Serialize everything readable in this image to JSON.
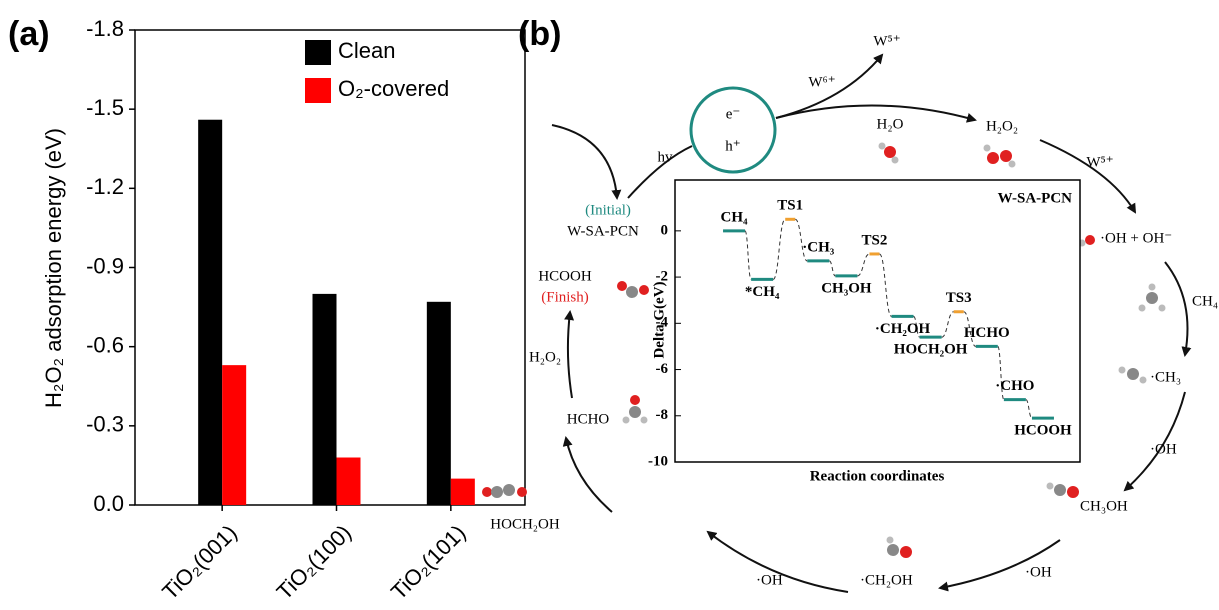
{
  "chart_data": [
    {
      "type": "bar",
      "panel": "(a)",
      "ylabel": "H₂O₂ adsorption energy (eV)",
      "categories": [
        "TiO₂(001)",
        "TiO₂(100)",
        "TiO₂(101)"
      ],
      "series": [
        {
          "name": "Clean",
          "color": "#000000",
          "values": [
            -1.46,
            -0.8,
            -0.77
          ]
        },
        {
          "name": "O₂-covered",
          "color": "#ff0000",
          "values": [
            -0.53,
            -0.18,
            -0.1
          ]
        }
      ],
      "ylim": [
        0,
        -1.8
      ],
      "yticks": [
        {
          "value": 0,
          "label": "0.0"
        },
        -0.3,
        -0.6,
        -0.9,
        -1.2,
        -1.5,
        -1.8
      ],
      "legend": "upper right"
    },
    {
      "type": "energy-profile",
      "title": "W-SA-PCN",
      "xlabel": "Reaction coordinates",
      "ylabel": "Delta G(eV)",
      "categories": [
        "CH₄",
        "*CH₄",
        "TS1",
        "·CH₃",
        "CH₃OH",
        "TS2",
        "·CH₂OH",
        "HOCH₂OH",
        "TS3",
        "HCHO",
        "·CHO",
        "HCOOH"
      ],
      "values": [
        0,
        -2.1,
        0.5,
        -1.3,
        -1.95,
        -1.0,
        -3.7,
        -4.6,
        -3.5,
        -5.0,
        -7.3,
        -8.1
      ],
      "colors": [
        "#1f8a80",
        "#1f8a80",
        "#f0a030",
        "#1f8a80",
        "#1f8a80",
        "#f0a030",
        "#1f8a80",
        "#1f8a80",
        "#f0a030",
        "#1f8a80",
        "#1f8a80",
        "#1f8a80"
      ],
      "ylim": [
        -10,
        2.2
      ],
      "yticks": [
        0,
        -2,
        -4,
        -6,
        -8,
        -10
      ]
    }
  ],
  "diagram": {
    "panel": "(b)",
    "electron": "e⁻",
    "hole": "h⁺",
    "light": "hv",
    "w5_top": "W⁵⁺",
    "w6": "W⁶⁺",
    "h2o": "H₂O",
    "h2o2_top": "H₂O₂",
    "w5_right": "W⁵⁺",
    "oh_ohm": "·OH + OH⁻",
    "ch4": "CH₄",
    "ch3": "·CH₃",
    "oh_1": "·OH",
    "ch3oh": "CH₃OH",
    "oh_2": "·OH",
    "ch2oh": "·CH₂OH",
    "oh_3": "·OH",
    "hoch2oh": "HOCH₂OH",
    "hcho": "HCHO",
    "h2o2_left": "H₂O₂",
    "hcooh": "HCOOH",
    "finish": "(Finish)",
    "initial": "(Initial)",
    "catalyst": "W-SA-PCN"
  }
}
